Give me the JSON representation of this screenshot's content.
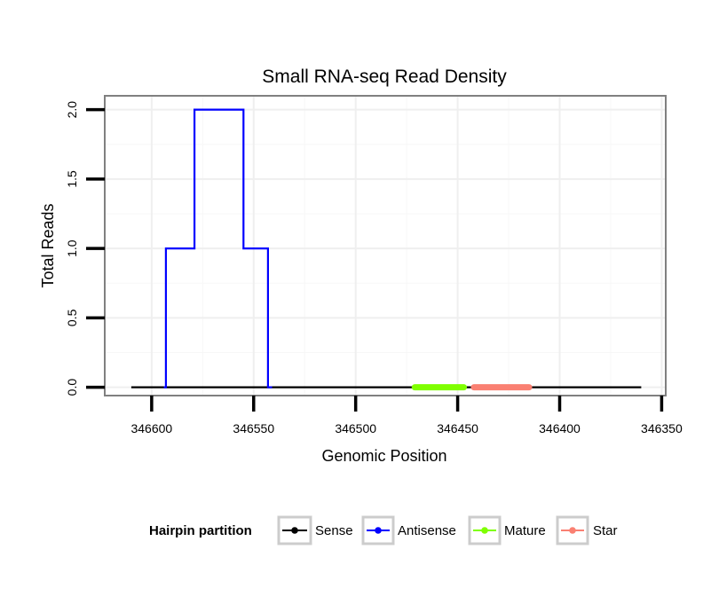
{
  "chart_data": {
    "type": "line",
    "title": "Small RNA-seq Read Density",
    "xlabel": "Genomic Position",
    "ylabel": "Total Reads",
    "x_reversed": true,
    "xlim": [
      346623,
      346348
    ],
    "ylim": [
      -0.06,
      2.1
    ],
    "x_ticks": [
      346600,
      346550,
      346500,
      346450,
      346400,
      346350
    ],
    "x_tick_labels": [
      "346600",
      "346550",
      "346500",
      "346450",
      "346400",
      "346350"
    ],
    "y_ticks": [
      0,
      0.5,
      1,
      1.5,
      2
    ],
    "y_tick_labels": [
      "0.0",
      "0.5",
      "1.0",
      "1.5",
      "2.0"
    ],
    "grid": true,
    "legend": {
      "title": "Hairpin partition",
      "placement": "bottom",
      "entries": [
        "Sense",
        "Antisense",
        "Mature",
        "Star"
      ]
    },
    "series": [
      {
        "name": "Sense",
        "color": "#000000",
        "x": [
          346610,
          346360
        ],
        "y": [
          0,
          0
        ]
      },
      {
        "name": "Antisense",
        "color": "#0000ff",
        "x": [
          346594,
          346593,
          346593,
          346579,
          346579,
          346555,
          346555,
          346543,
          346543,
          346541
        ],
        "y": [
          0,
          0,
          1,
          1,
          2,
          2,
          1,
          1,
          0,
          0
        ]
      },
      {
        "name": "Mature",
        "color": "#7fff00",
        "x": [
          346471,
          346447
        ],
        "y": [
          0,
          0
        ]
      },
      {
        "name": "Star",
        "color": "#fa8072",
        "x": [
          346442,
          346415
        ],
        "y": [
          0,
          0
        ]
      }
    ]
  }
}
